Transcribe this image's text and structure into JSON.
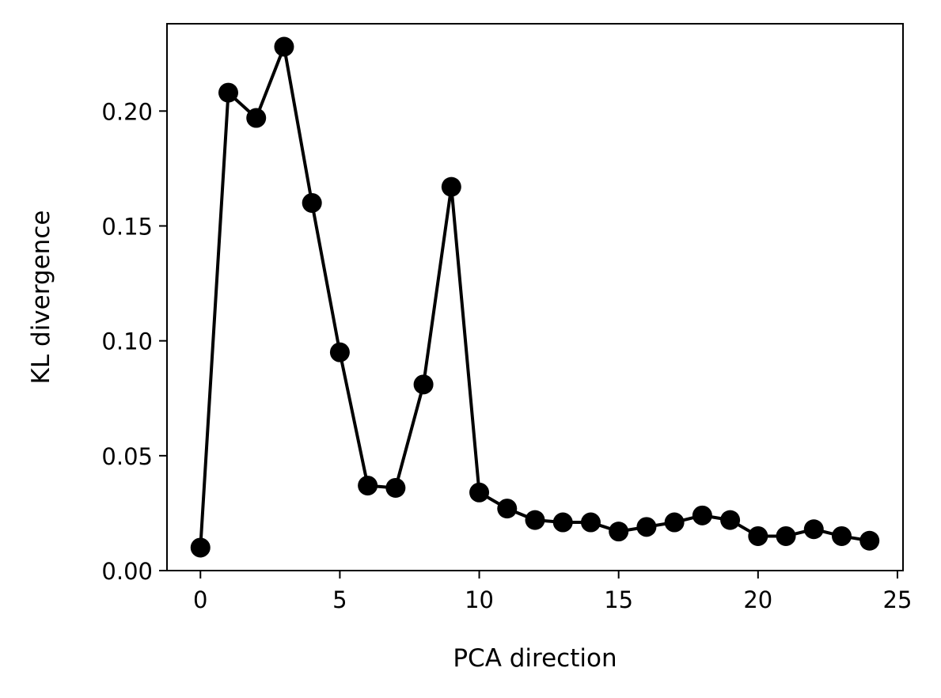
{
  "chart_data": {
    "type": "line",
    "title": "",
    "xlabel": "PCA direction",
    "ylabel": "KL divergence",
    "xlim": [
      -1.2,
      25.2
    ],
    "ylim": [
      0.0,
      0.238
    ],
    "xticks": [
      0,
      5,
      10,
      15,
      20,
      25
    ],
    "xtick_labels": [
      "0",
      "5",
      "10",
      "15",
      "20",
      "25"
    ],
    "yticks": [
      0.0,
      0.05,
      0.1,
      0.15,
      0.2
    ],
    "ytick_labels": [
      "0.00",
      "0.05",
      "0.10",
      "0.15",
      "0.20"
    ],
    "grid": false,
    "legend": "none",
    "colors": {
      "line": "#000000",
      "marker": "#000000",
      "axes": "#000000"
    },
    "series": [
      {
        "marker": "circle",
        "x": [
          0,
          1,
          2,
          3,
          4,
          5,
          6,
          7,
          8,
          9,
          10,
          11,
          12,
          13,
          14,
          15,
          16,
          17,
          18,
          19,
          20,
          21,
          22,
          23,
          24
        ],
        "y": [
          0.01,
          0.208,
          0.197,
          0.228,
          0.16,
          0.095,
          0.037,
          0.036,
          0.081,
          0.167,
          0.034,
          0.027,
          0.022,
          0.021,
          0.021,
          0.017,
          0.019,
          0.021,
          0.024,
          0.022,
          0.015,
          0.015,
          0.018,
          0.015,
          0.013
        ]
      }
    ]
  }
}
